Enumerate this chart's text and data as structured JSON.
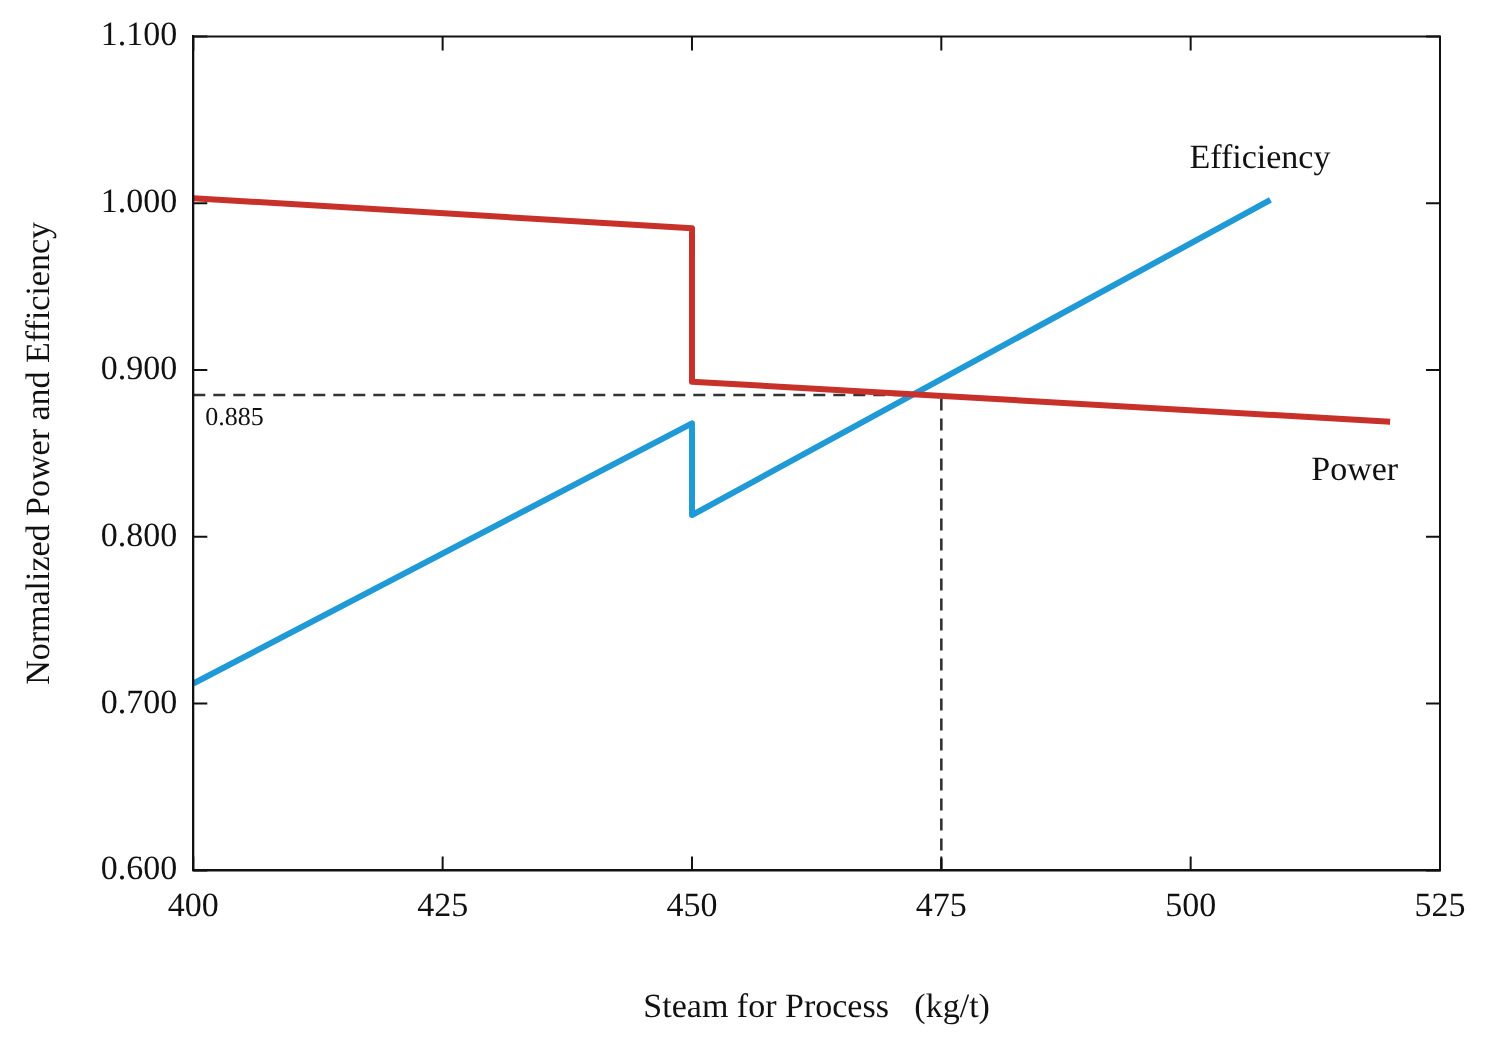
{
  "chart_data": {
    "type": "line",
    "xlabel": "Steam for Process   (kg/t)",
    "ylabel": "Normalized Power and Efficiency",
    "series": [
      {
        "name": "Power",
        "color": "#c8302a",
        "x": [
          400,
          450,
          450,
          520
        ],
        "values": [
          1.003,
          0.985,
          0.893,
          0.869
        ]
      },
      {
        "name": "Efficiency",
        "color": "#1f9ad6",
        "x": [
          400,
          450,
          450,
          508
        ],
        "values": [
          0.712,
          0.868,
          0.813,
          1.002
        ]
      }
    ],
    "xlim": [
      400,
      525
    ],
    "xticks": [
      400,
      425,
      450,
      475,
      500,
      525
    ],
    "ylim": [
      0.6,
      1.1
    ],
    "yticks": [
      {
        "value": 0.6,
        "label": "0.600"
      },
      {
        "value": 0.7,
        "label": "0.700"
      },
      {
        "value": 0.8,
        "label": "0.800"
      },
      {
        "value": 0.9,
        "label": "0.900"
      },
      {
        "value": 1.0,
        "label": "1.000"
      },
      {
        "value": 1.1,
        "label": "1.100"
      }
    ],
    "ref_lines": [
      {
        "axis": "y",
        "value": 0.885,
        "label": "0.885",
        "color": "#333333",
        "line_style": "dashed"
      },
      {
        "axis": "x",
        "value": 475,
        "color": "#333333",
        "line_style": "dashed"
      }
    ],
    "grid": false,
    "legend": false,
    "marker": "none",
    "line_style": "solid"
  }
}
